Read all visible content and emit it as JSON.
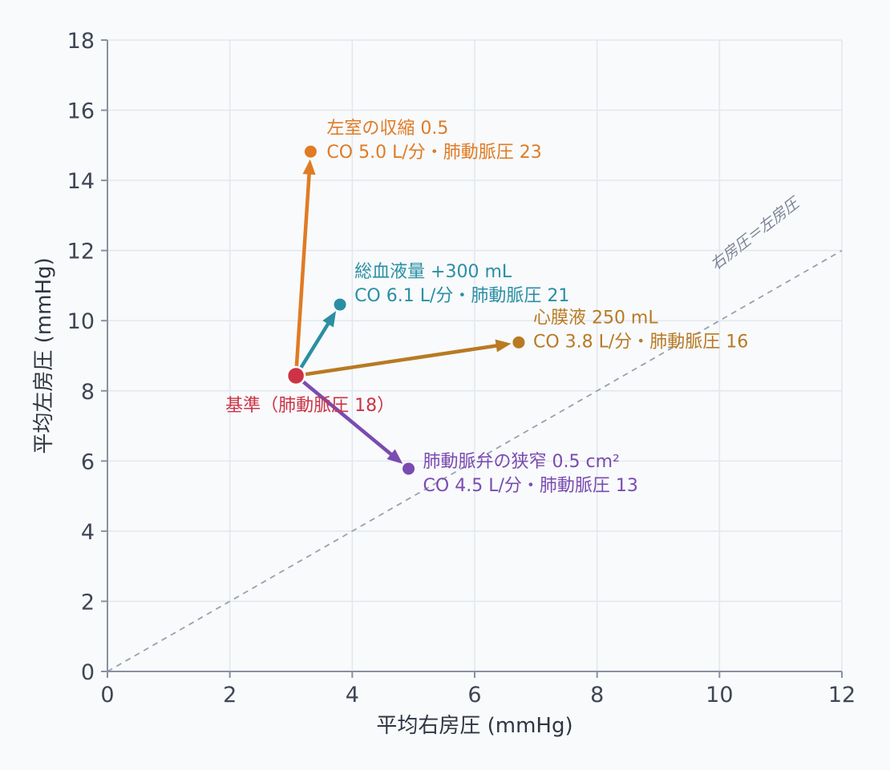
{
  "chart_data": {
    "type": "scatter",
    "title": "",
    "xlabel": "平均右房圧 (mmHg)",
    "ylabel": "平均左房圧 (mmHg)",
    "xlim": [
      0,
      12
    ],
    "ylim": [
      0,
      18
    ],
    "x_ticks": [
      0,
      2,
      4,
      6,
      8,
      10,
      12
    ],
    "y_ticks": [
      0,
      2,
      4,
      6,
      8,
      10,
      12,
      14,
      16,
      18
    ],
    "grid": true,
    "legend": "none",
    "reference_line": {
      "type": "identity",
      "label": "右房圧＝左房圧",
      "color": "#9aa1ad",
      "style": "dashed"
    },
    "baseline": {
      "x": 3.08,
      "y": 8.43,
      "label": "基準（肺動脈圧 18）",
      "color": "#cc3344"
    },
    "scenarios": [
      {
        "x": 3.32,
        "y": 14.82,
        "color": "#e07b24",
        "line1": "左室の収縮 0.5",
        "line2": "CO 5.0 L/分・肺動脈圧 23"
      },
      {
        "x": 3.8,
        "y": 10.46,
        "color": "#2a8fa3",
        "line1": "総血液量 +300 mL",
        "line2": "CO 6.1 L/分・肺動脈圧 21"
      },
      {
        "x": 6.72,
        "y": 9.38,
        "color": "#b87a22",
        "line1": "心膜液 250 mL",
        "line2": "CO 3.8 L/分・肺動脈圧 16"
      },
      {
        "x": 4.92,
        "y": 5.78,
        "color": "#7a4bb0",
        "line1": "肺動脈弁の狭窄 0.5 cm²",
        "line2": "CO 4.5 L/分・肺動脈圧 13"
      }
    ]
  }
}
